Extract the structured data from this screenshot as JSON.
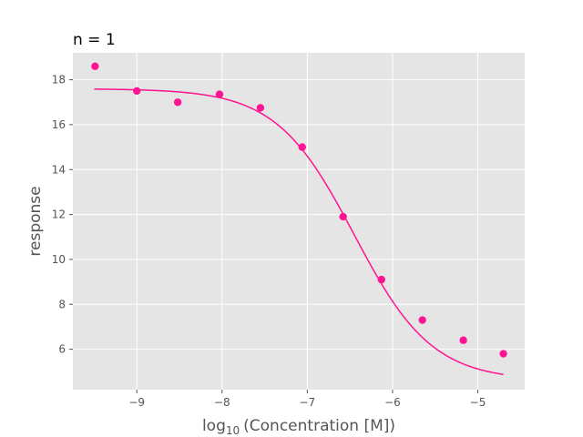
{
  "chart_data": {
    "type": "scatter",
    "title": "n = 1",
    "xlabel_main": "log",
    "xlabel_sub": "10",
    "xlabel_rest": "(Concentration [M])",
    "ylabel": "response",
    "xlim": [
      -9.75,
      -4.45
    ],
    "ylim": [
      4.2,
      19.2
    ],
    "xticks": [
      -9,
      -8,
      -7,
      -6,
      -5
    ],
    "xtick_labels": [
      "−9",
      "−8",
      "−7",
      "−6",
      "−5"
    ],
    "yticks": [
      6,
      8,
      10,
      12,
      14,
      16,
      18
    ],
    "ytick_labels": [
      "6",
      "8",
      "10",
      "12",
      "14",
      "16",
      "18"
    ],
    "grid": true,
    "background_color": "#e5e5e5",
    "point_color": "#ff1493",
    "line_color": "#ff1493",
    "series": [
      {
        "values_x": [
          -9.49,
          -9.0,
          -8.52,
          -8.03,
          -7.55,
          -7.06,
          -6.58,
          -6.13,
          -5.65,
          -5.17,
          -4.7
        ],
        "values_y": [
          18.6,
          17.5,
          17.0,
          17.35,
          16.75,
          15.0,
          11.9,
          9.1,
          7.3,
          6.4,
          5.8
        ]
      }
    ],
    "fit_curve": {
      "model": "4PL",
      "top": 17.6,
      "bottom": 4.6,
      "log_ec50": -6.45,
      "hill_slope": 0.95,
      "x_range": [
        -9.5,
        -4.7
      ]
    }
  }
}
